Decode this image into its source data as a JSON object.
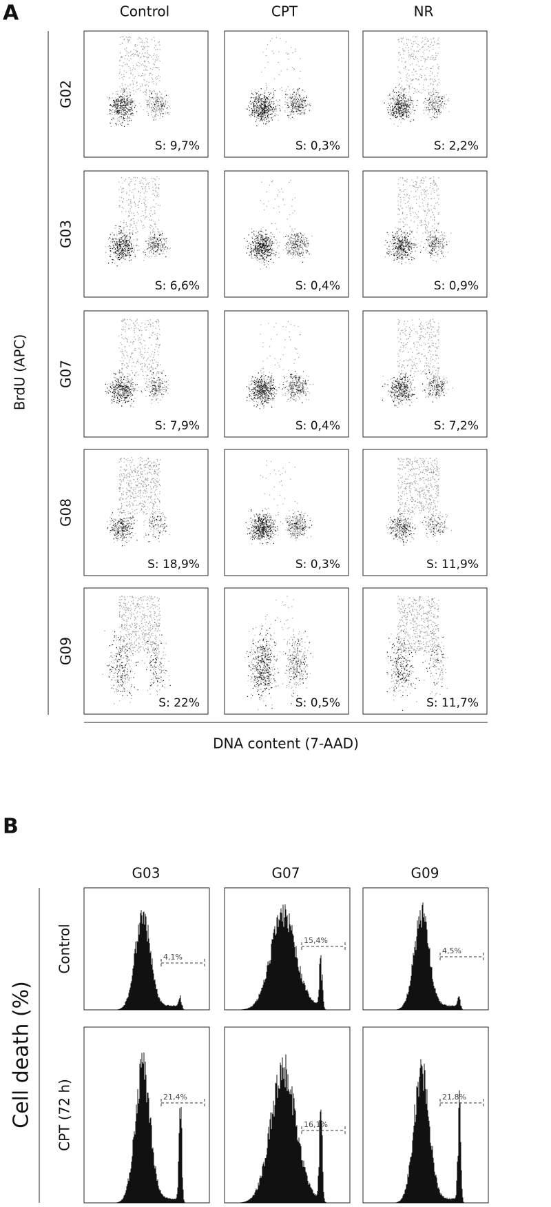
{
  "panel_a": {
    "label": "A",
    "columns": [
      "Control",
      "CPT",
      "NR"
    ],
    "rows": [
      {
        "label": "G02",
        "values": [
          "S: 9,7%",
          "S: 0,3%",
          "S: 2,2%"
        ]
      },
      {
        "label": "G03",
        "values": [
          "S: 6,6%",
          "S: 0,4%",
          "S: 0,9%"
        ]
      },
      {
        "label": "G07",
        "values": [
          "S: 7,9%",
          "S: 0,4%",
          "S: 7,2%"
        ]
      },
      {
        "label": "G08",
        "values": [
          "S: 18,9%",
          "S: 0,3%",
          "S: 11,9%"
        ]
      },
      {
        "label": "G09",
        "values": [
          "S: 22%",
          "S: 0,5%",
          "S: 11,7%"
        ]
      }
    ],
    "x_axis_label": "DNA content (7-AAD)",
    "y_axis_label": "BrdU (APC)"
  },
  "panel_b": {
    "label": "B",
    "columns": [
      "G03",
      "G07",
      "G09"
    ],
    "rows": [
      {
        "label": "Control",
        "gates": [
          "4,1%",
          "15,4%",
          "4,5%"
        ]
      },
      {
        "label": "CPT (72 h)",
        "gates": [
          "21,4%",
          "16,1%",
          "21,8%"
        ]
      }
    ],
    "y_axis_label": "Cell death (%)"
  }
}
